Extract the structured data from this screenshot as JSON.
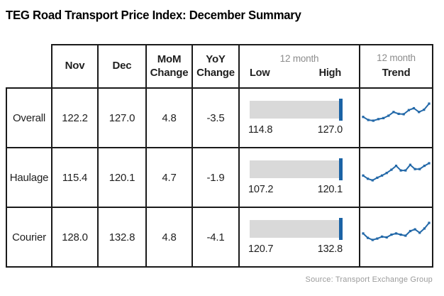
{
  "title": "TEG Road Transport Price Index: December Summary",
  "source": "Source: Transport Exchange Group",
  "colors": {
    "border_black": "#1a1a1a",
    "bar_gray": "#d9d9d9",
    "spark_blue": "#2268a8",
    "marker_blue": "#1b63a5",
    "muted_gray": "#8c8c8c",
    "source_gray": "#9b9b9b"
  },
  "header": {
    "nov": "Nov",
    "dec": "Dec",
    "mom": [
      "MoM",
      "Change"
    ],
    "yoy": [
      "YoY",
      "Change"
    ],
    "range_group": "12 month",
    "low": "Low",
    "high": "High",
    "trend_group": "12 month",
    "trend": "Trend"
  },
  "rows": [
    {
      "label": "Overall",
      "nov": "122.2",
      "dec": "127.0",
      "mom_change": "4.8",
      "yoy_change": "-3.5",
      "low": "114.8",
      "high": "127.0",
      "trend_points": [
        0.22,
        0.04,
        0.0,
        0.09,
        0.15,
        0.29,
        0.51,
        0.4,
        0.38,
        0.62,
        0.73,
        0.51,
        0.64,
        1.0
      ]
    },
    {
      "label": "Haulage",
      "nov": "115.4",
      "dec": "120.1",
      "mom_change": "4.7",
      "yoy_change": "-1.9",
      "low": "107.2",
      "high": "120.1",
      "trend_points": [
        0.28,
        0.09,
        0.0,
        0.15,
        0.28,
        0.43,
        0.62,
        0.85,
        0.58,
        0.58,
        0.91,
        0.66,
        0.66,
        0.85,
        1.0
      ]
    },
    {
      "label": "Courier",
      "nov": "128.0",
      "dec": "132.8",
      "mom_change": "4.8",
      "yoy_change": "-4.1",
      "low": "120.7",
      "high": "132.8",
      "trend_points": [
        0.38,
        0.12,
        0.0,
        0.08,
        0.19,
        0.15,
        0.31,
        0.38,
        0.31,
        0.25,
        0.52,
        0.62,
        0.42,
        0.67,
        1.0
      ]
    }
  ],
  "chart_data": {
    "type": "table",
    "title": "TEG Road Transport Price Index: December Summary",
    "columns": [
      "",
      "Nov",
      "Dec",
      "MoM Change",
      "YoY Change",
      "12 month Low",
      "12 month High",
      "12 month Trend"
    ],
    "rows": [
      {
        "category": "Overall",
        "nov": 122.2,
        "dec": 127.0,
        "mom_change": 4.8,
        "yoy_change": -3.5,
        "low_12m": 114.8,
        "high_12m": 127.0,
        "current_marker_at": "high",
        "trend_sparkline_normalized": [
          0.22,
          0.04,
          0.0,
          0.09,
          0.15,
          0.29,
          0.51,
          0.4,
          0.38,
          0.62,
          0.73,
          0.51,
          0.64,
          1.0
        ]
      },
      {
        "category": "Haulage",
        "nov": 115.4,
        "dec": 120.1,
        "mom_change": 4.7,
        "yoy_change": -1.9,
        "low_12m": 107.2,
        "high_12m": 120.1,
        "current_marker_at": "high",
        "trend_sparkline_normalized": [
          0.28,
          0.09,
          0.0,
          0.15,
          0.28,
          0.43,
          0.62,
          0.85,
          0.58,
          0.58,
          0.91,
          0.66,
          0.66,
          0.85,
          1.0
        ]
      },
      {
        "category": "Courier",
        "nov": 128.0,
        "dec": 132.8,
        "mom_change": 4.8,
        "yoy_change": -4.1,
        "low_12m": 120.7,
        "high_12m": 132.8,
        "current_marker_at": "high",
        "trend_sparkline_normalized": [
          0.38,
          0.12,
          0.0,
          0.08,
          0.19,
          0.15,
          0.31,
          0.38,
          0.31,
          0.25,
          0.52,
          0.62,
          0.42,
          0.67,
          1.0
        ]
      }
    ],
    "notes": "Each row shows a gray range bar spanning the 12-month low to high with a blue marker at the high end, and a blue 12-month trend sparkline.",
    "source": "Source: Transport Exchange Group"
  }
}
